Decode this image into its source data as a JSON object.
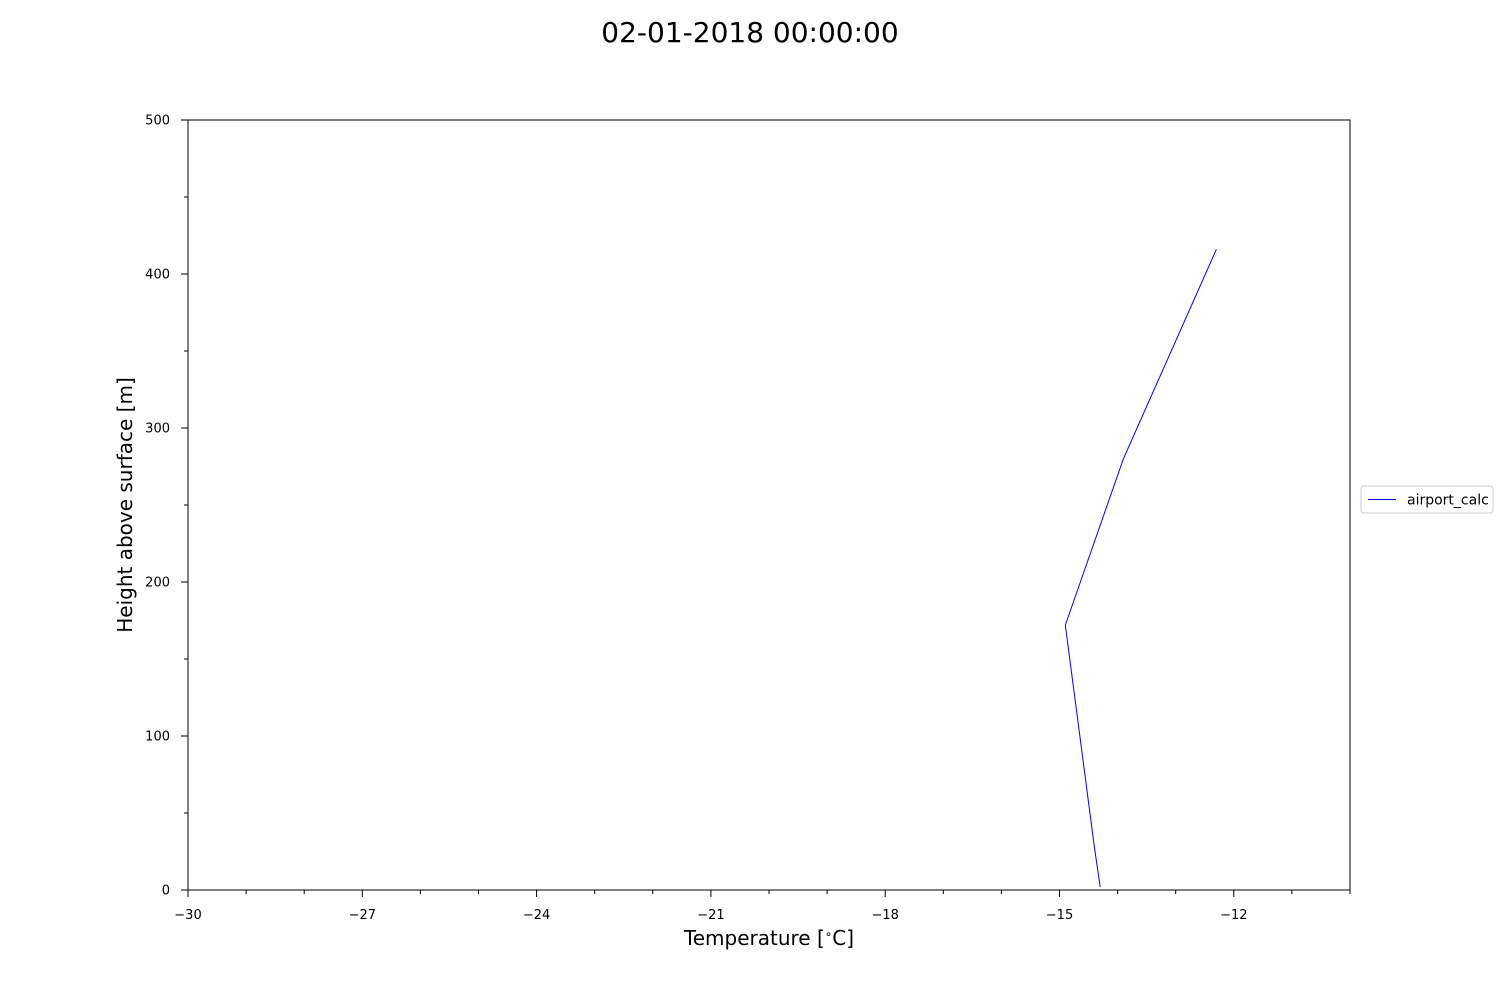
{
  "chart_data": {
    "type": "line",
    "title": "02-01-2018 00:00:00",
    "xlabel": "Temperature [$^\\circ$C]",
    "ylabel": "Height above surface [m]",
    "xlim": [
      -30,
      -10
    ],
    "ylim": [
      0,
      500
    ],
    "x_major_ticks": [
      -30,
      -27,
      -24,
      -21,
      -18,
      -15,
      -12
    ],
    "x_tick_labels": [
      "−30",
      "−27",
      "−24",
      "−21",
      "−18",
      "−15",
      "−12"
    ],
    "x_minor_step": 1,
    "y_major_ticks": [
      0,
      100,
      200,
      300,
      400,
      500
    ],
    "y_tick_labels": [
      "0",
      "100",
      "200",
      "300",
      "400",
      "500"
    ],
    "y_minor_step": 50,
    "grid": false,
    "legend_position": "right",
    "series": [
      {
        "name": "airport_calc",
        "color": "#0000ff",
        "x": [
          -14.3,
          -14.4,
          -14.9,
          -13.9,
          -12.3
        ],
        "y": [
          2,
          28,
          172,
          280,
          416
        ]
      }
    ]
  }
}
